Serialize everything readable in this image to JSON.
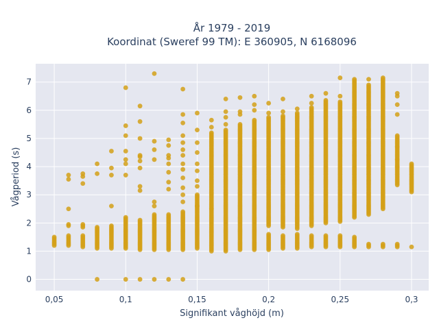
{
  "chart_data": {
    "type": "scatter",
    "title": [
      "År 1979 - 2019",
      "Koordinat (Sweref 99 TM): E 360905, N 6168096"
    ],
    "xlabel": "Signifikant våghöjd (m)",
    "ylabel": "Vågperiod (s)",
    "xlim": [
      0.037,
      0.312
    ],
    "ylim": [
      -0.4,
      7.65
    ],
    "xticks": [
      {
        "value": 0.05,
        "label": "0,05"
      },
      {
        "value": 0.1,
        "label": "0,1"
      },
      {
        "value": 0.15,
        "label": "0,15"
      },
      {
        "value": 0.2,
        "label": "0,2"
      },
      {
        "value": 0.25,
        "label": "0,25"
      },
      {
        "value": 0.3,
        "label": "0,3"
      }
    ],
    "yticks": [
      {
        "value": 0,
        "label": "0"
      },
      {
        "value": 1,
        "label": "1"
      },
      {
        "value": 2,
        "label": "2"
      },
      {
        "value": 3,
        "label": "3"
      },
      {
        "value": 4,
        "label": "4"
      },
      {
        "value": 5,
        "label": "5"
      },
      {
        "value": 6,
        "label": "6"
      },
      {
        "value": 7,
        "label": "7"
      }
    ],
    "grid": true,
    "marker_color": "#d4a017",
    "plot_bg": "#e5e7f0",
    "columns": [
      {
        "x": 0.05,
        "ranges": [
          [
            1.2,
            1.5
          ]
        ],
        "points": []
      },
      {
        "x": 0.06,
        "ranges": [
          [
            1.2,
            1.55
          ],
          [
            1.9,
            1.95
          ]
        ],
        "points": [
          2.5,
          3.55,
          3.7
        ]
      },
      {
        "x": 0.07,
        "ranges": [
          [
            1.15,
            1.55
          ],
          [
            1.85,
            1.95
          ]
        ],
        "points": [
          3.4,
          3.65,
          3.75
        ]
      },
      {
        "x": 0.08,
        "ranges": [
          [
            1.1,
            1.85
          ]
        ],
        "points": [
          0,
          3.75,
          4.1
        ]
      },
      {
        "x": 0.09,
        "ranges": [
          [
            1.1,
            1.9
          ]
        ],
        "points": [
          2.6,
          3.7,
          3.95,
          4.55
        ]
      },
      {
        "x": 0.1,
        "ranges": [
          [
            1.1,
            2.2
          ]
        ],
        "points": [
          0,
          3.7,
          4.1,
          4.25,
          4.55,
          5.1,
          5.45,
          6.8
        ]
      },
      {
        "x": 0.11,
        "ranges": [
          [
            1.05,
            2.1
          ]
        ],
        "points": [
          0,
          3.15,
          3.3,
          3.95,
          4.2,
          4.35,
          4.4,
          5.0,
          5.6,
          6.15
        ]
      },
      {
        "x": 0.12,
        "ranges": [
          [
            1.05,
            2.3
          ]
        ],
        "points": [
          0,
          2.6,
          2.75,
          4.25,
          4.6,
          4.9,
          7.3
        ]
      },
      {
        "x": 0.13,
        "ranges": [
          [
            1.05,
            2.3
          ]
        ],
        "points": [
          0,
          3.2,
          3.45,
          3.8,
          4.1,
          4.3,
          4.4,
          4.75,
          4.95
        ]
      },
      {
        "x": 0.14,
        "ranges": [
          [
            1.05,
            2.4
          ]
        ],
        "points": [
          0,
          2.75,
          3.0,
          3.25,
          3.6,
          3.9,
          4.1,
          4.4,
          4.6,
          4.85,
          5.1,
          5.55,
          5.85,
          6.75
        ]
      },
      {
        "x": 0.15,
        "ranges": [
          [
            1.1,
            2.6
          ],
          [
            2.6,
            3.0
          ]
        ],
        "points": [
          3.3,
          3.5,
          3.85,
          4.1,
          4.5,
          4.85,
          5.3,
          5.9
        ]
      },
      {
        "x": 0.16,
        "ranges": [
          [
            1.0,
            2.5
          ],
          [
            2.5,
            5.2
          ]
        ],
        "points": [
          5.4,
          5.65
        ]
      },
      {
        "x": 0.17,
        "ranges": [
          [
            1.0,
            5.3
          ]
        ],
        "points": [
          5.5,
          5.75,
          5.95,
          6.4
        ]
      },
      {
        "x": 0.18,
        "ranges": [
          [
            1.05,
            5.5
          ]
        ],
        "points": [
          5.85,
          5.95,
          6.45
        ]
      },
      {
        "x": 0.19,
        "ranges": [
          [
            1.05,
            5.65
          ]
        ],
        "points": [
          6.0,
          6.2,
          6.5
        ]
      },
      {
        "x": 0.2,
        "ranges": [
          [
            1.05,
            1.6
          ],
          [
            1.9,
            5.75
          ]
        ],
        "points": [
          5.9,
          6.25
        ]
      },
      {
        "x": 0.21,
        "ranges": [
          [
            1.1,
            1.55
          ],
          [
            1.85,
            5.8
          ]
        ],
        "points": [
          5.95,
          6.4
        ]
      },
      {
        "x": 0.22,
        "ranges": [
          [
            1.1,
            1.6
          ],
          [
            1.8,
            5.9
          ]
        ],
        "points": [
          6.05
        ]
      },
      {
        "x": 0.23,
        "ranges": [
          [
            1.15,
            1.55
          ],
          [
            1.9,
            6.1
          ]
        ],
        "points": [
          6.25,
          6.5
        ]
      },
      {
        "x": 0.24,
        "ranges": [
          [
            1.15,
            1.55
          ],
          [
            2.0,
            6.3
          ]
        ],
        "points": [
          6.35,
          6.6
        ]
      },
      {
        "x": 0.25,
        "ranges": [
          [
            1.15,
            1.55
          ],
          [
            2.05,
            6.3
          ]
        ],
        "points": [
          6.5,
          7.15
        ]
      },
      {
        "x": 0.26,
        "ranges": [
          [
            1.15,
            1.5
          ],
          [
            2.2,
            7.1
          ]
        ],
        "points": []
      },
      {
        "x": 0.27,
        "ranges": [
          [
            1.15,
            1.25
          ],
          [
            2.3,
            6.9
          ]
        ],
        "points": [
          7.1
        ]
      },
      {
        "x": 0.28,
        "ranges": [
          [
            1.15,
            1.25
          ],
          [
            2.5,
            7.15
          ]
        ],
        "points": []
      },
      {
        "x": 0.29,
        "ranges": [
          [
            1.15,
            1.25
          ],
          [
            3.35,
            5.1
          ]
        ],
        "points": [
          4.0,
          4.25,
          4.7,
          5.85,
          6.2,
          6.5,
          6.6
        ]
      },
      {
        "x": 0.3,
        "ranges": [
          [
            3.1,
            4.1
          ]
        ],
        "points": [
          1.15
        ]
      }
    ]
  }
}
